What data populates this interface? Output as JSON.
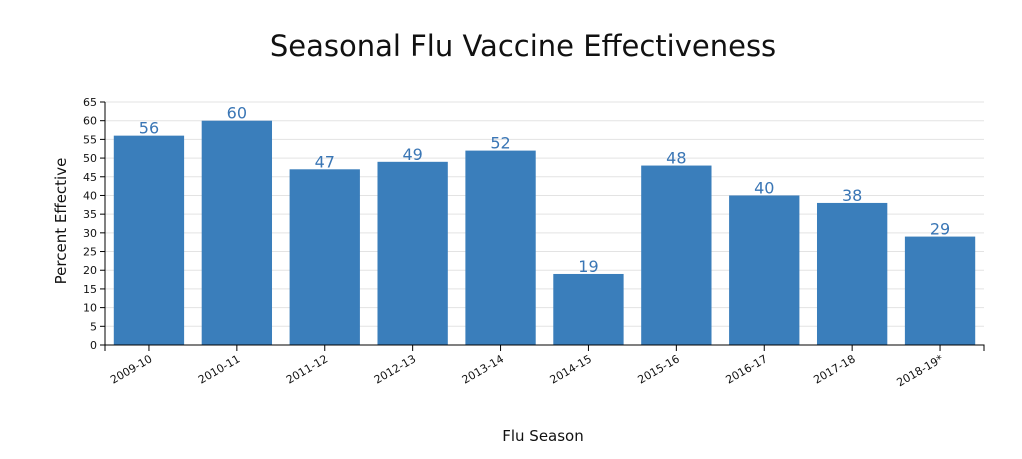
{
  "chart_data": {
    "type": "bar",
    "title": "Seasonal Flu Vaccine Effectiveness",
    "xlabel": "Flu Season",
    "ylabel": "Percent Effective",
    "categories": [
      "2009-10",
      "2010-11",
      "2011-12",
      "2012-13",
      "2013-14",
      "2014-15",
      "2015-16",
      "2016-17",
      "2017-18",
      "2018-19*"
    ],
    "values": [
      56,
      60,
      47,
      49,
      52,
      19,
      48,
      40,
      38,
      29
    ],
    "value_labels": [
      "56",
      "60",
      "47",
      "49",
      "52",
      "19",
      "48",
      "40",
      "38",
      "29"
    ],
    "ylim": [
      0,
      65
    ],
    "yticks": [
      0,
      5,
      10,
      15,
      20,
      25,
      30,
      35,
      40,
      45,
      50,
      55,
      60,
      65
    ],
    "ytick_labels": [
      "0",
      "5",
      "10",
      "15",
      "20",
      "25",
      "30",
      "35",
      "40",
      "45",
      "50",
      "55",
      "60",
      "65"
    ],
    "grid": true,
    "legend": "none",
    "bar_color": "#3a7ebb",
    "label_color": "#3a76b5"
  }
}
